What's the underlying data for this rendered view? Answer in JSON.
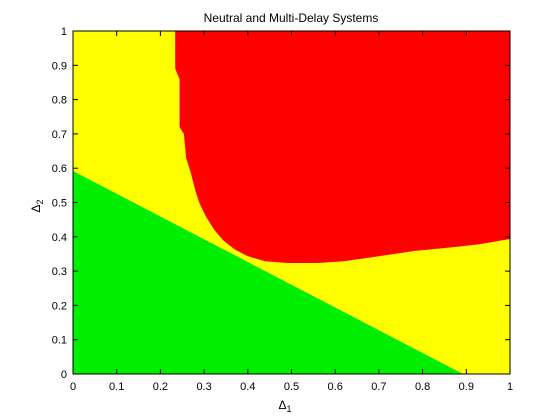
{
  "chart_data": {
    "type": "area",
    "title": "Neutral and Multi-Delay Systems",
    "xlabel": "Δ",
    "xlabel_sub": "1",
    "ylabel": "Δ",
    "ylabel_sub": "2",
    "xlim": [
      0,
      1
    ],
    "ylim": [
      0,
      1
    ],
    "xticks": [
      "0",
      "0.1",
      "0.2",
      "0.3",
      "0.4",
      "0.5",
      "0.6",
      "0.7",
      "0.8",
      "0.9",
      "1"
    ],
    "yticks": [
      "0",
      "0.1",
      "0.2",
      "0.3",
      "0.4",
      "0.5",
      "0.6",
      "0.7",
      "0.8",
      "0.9",
      "1"
    ],
    "background_region": {
      "color": "#ffff00"
    },
    "regions": [
      {
        "color": "#00ee00",
        "boundary": [
          [
            0,
            0
          ],
          [
            0,
            0.59
          ],
          [
            0.89,
            0
          ]
        ]
      },
      {
        "color": "#ff0000",
        "boundary": [
          [
            0.235,
            1.0
          ],
          [
            0.235,
            0.89
          ],
          [
            0.245,
            0.86
          ],
          [
            0.245,
            0.72
          ],
          [
            0.255,
            0.7
          ],
          [
            0.26,
            0.63
          ],
          [
            0.27,
            0.59
          ],
          [
            0.28,
            0.54
          ],
          [
            0.29,
            0.5
          ],
          [
            0.305,
            0.46
          ],
          [
            0.325,
            0.42
          ],
          [
            0.345,
            0.39
          ],
          [
            0.37,
            0.365
          ],
          [
            0.4,
            0.345
          ],
          [
            0.44,
            0.33
          ],
          [
            0.49,
            0.325
          ],
          [
            0.56,
            0.325
          ],
          [
            0.62,
            0.33
          ],
          [
            0.7,
            0.345
          ],
          [
            0.78,
            0.36
          ],
          [
            0.86,
            0.37
          ],
          [
            0.93,
            0.38
          ],
          [
            1.0,
            0.395
          ],
          [
            1.0,
            1.0
          ]
        ]
      }
    ]
  }
}
